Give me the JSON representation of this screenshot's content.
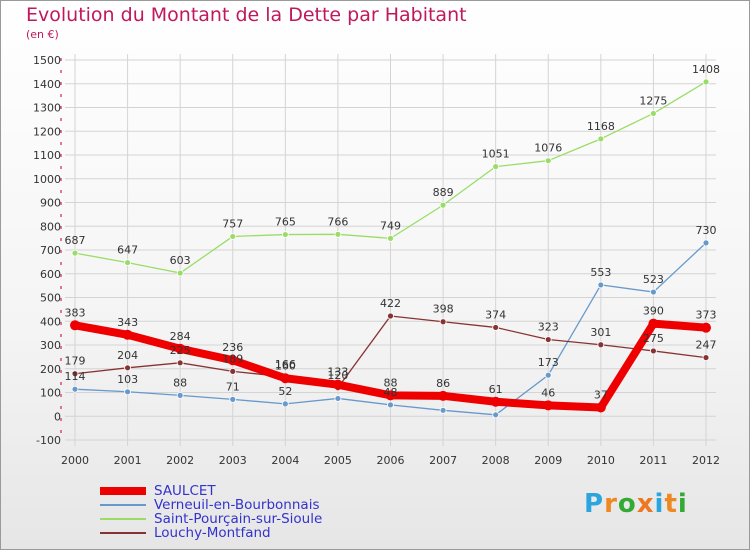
{
  "chart_data": {
    "type": "line",
    "title": "Evolution du Montant de la Dette par Habitant",
    "subtitle": "(en €)",
    "x": [
      "2000",
      "2001",
      "2002",
      "2003",
      "2004",
      "2005",
      "2006",
      "2007",
      "2008",
      "2009",
      "2010",
      "2011",
      "2012"
    ],
    "yticks": [
      "1500",
      "1400",
      "1300",
      "1200",
      "1100",
      "1000",
      "900",
      "800",
      "700",
      "600",
      "500",
      "400",
      "300",
      "200",
      "100",
      "0",
      "-100"
    ],
    "ylim": [
      -100,
      1500
    ],
    "grid": true,
    "legend_position": "bottom-left",
    "series": [
      {
        "name": "Saint-Pourçain-sur-Sioule",
        "color": "#99dd66",
        "values": [
          687,
          647,
          603,
          757,
          765,
          766,
          749,
          889,
          1051,
          1076,
          1168,
          1275,
          1408
        ],
        "labels": [
          "687",
          "647",
          "603",
          "757",
          "765",
          "766",
          "749",
          "889",
          "1051",
          "1076",
          "1168",
          "1275",
          "1408"
        ]
      },
      {
        "name": "Verneuil-en-Bourbonnais",
        "color": "#6699cc",
        "values": [
          114,
          103,
          88,
          71,
          52,
          75,
          48,
          25,
          6,
          173,
          553,
          523,
          730
        ],
        "labels": [
          "114",
          "103",
          "88",
          "71",
          "52",
          "",
          "48",
          "",
          "",
          "173",
          "553",
          "523",
          "730"
        ]
      },
      {
        "name": "Louchy-Montfand",
        "color": "#883333",
        "values": [
          179,
          204,
          225,
          189,
          166,
          120,
          422,
          398,
          374,
          323,
          301,
          275,
          247
        ],
        "labels": [
          "179",
          "204",
          "225",
          "189",
          "166",
          "120",
          "422",
          "398",
          "374",
          "323",
          "301",
          "275",
          "247"
        ]
      },
      {
        "name": "SAULCET",
        "color": "#ee0000",
        "values": [
          383,
          343,
          284,
          236,
          160,
          133,
          88,
          86,
          61,
          46,
          37,
          390,
          373
        ],
        "labels": [
          "383",
          "343",
          "284",
          "236",
          "160",
          "133",
          "88",
          "86",
          "61",
          "46",
          "37",
          "390",
          "373"
        ]
      }
    ],
    "legend_order": [
      "SAULCET",
      "Verneuil-en-Bourbonnais",
      "Saint-Pourçain-sur-Sioule",
      "Louchy-Montfand"
    ]
  },
  "logo": {
    "letters": [
      "P",
      "r",
      "o",
      "x",
      "i",
      "t",
      "i"
    ],
    "colors": [
      "#2aa5dd",
      "#ee8822",
      "#33aa33",
      "#ee7722",
      "#2aa5dd",
      "#ee8822",
      "#33aa33"
    ]
  }
}
